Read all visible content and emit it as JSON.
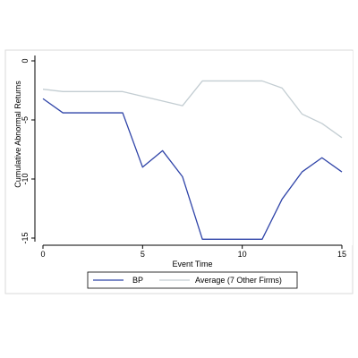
{
  "chart_data": {
    "type": "line",
    "title": "",
    "xlabel": "Event Time",
    "ylabel": "Cumulative Abnormal Returns",
    "xlim": [
      0,
      15
    ],
    "ylim": [
      -15,
      0
    ],
    "x_ticks": [
      "0",
      "5",
      "10",
      "15"
    ],
    "y_ticks": [
      "0",
      "-5",
      "-10",
      "-15"
    ],
    "grid": false,
    "legend_position": "bottom",
    "x": [
      0,
      1,
      2,
      3,
      4,
      5,
      6,
      7,
      8,
      9,
      10,
      11,
      12,
      13,
      14,
      15
    ],
    "series": [
      {
        "name": "BP",
        "color": "#2f44a8",
        "values": [
          -3.2,
          -4.4,
          -4.4,
          -4.4,
          -4.4,
          -9.0,
          -7.6,
          -9.8,
          -15.1,
          -15.1,
          -15.1,
          -15.1,
          -11.7,
          -9.4,
          -8.2,
          -9.4
        ]
      },
      {
        "name": "Average (7 Other Firms)",
        "color": "#c3cdd2",
        "values": [
          -2.4,
          -2.6,
          -2.6,
          -2.6,
          -2.6,
          -3.0,
          -3.4,
          -3.8,
          -1.7,
          -1.7,
          -1.7,
          -1.7,
          -2.3,
          -4.5,
          -5.3,
          -6.5
        ]
      }
    ]
  }
}
